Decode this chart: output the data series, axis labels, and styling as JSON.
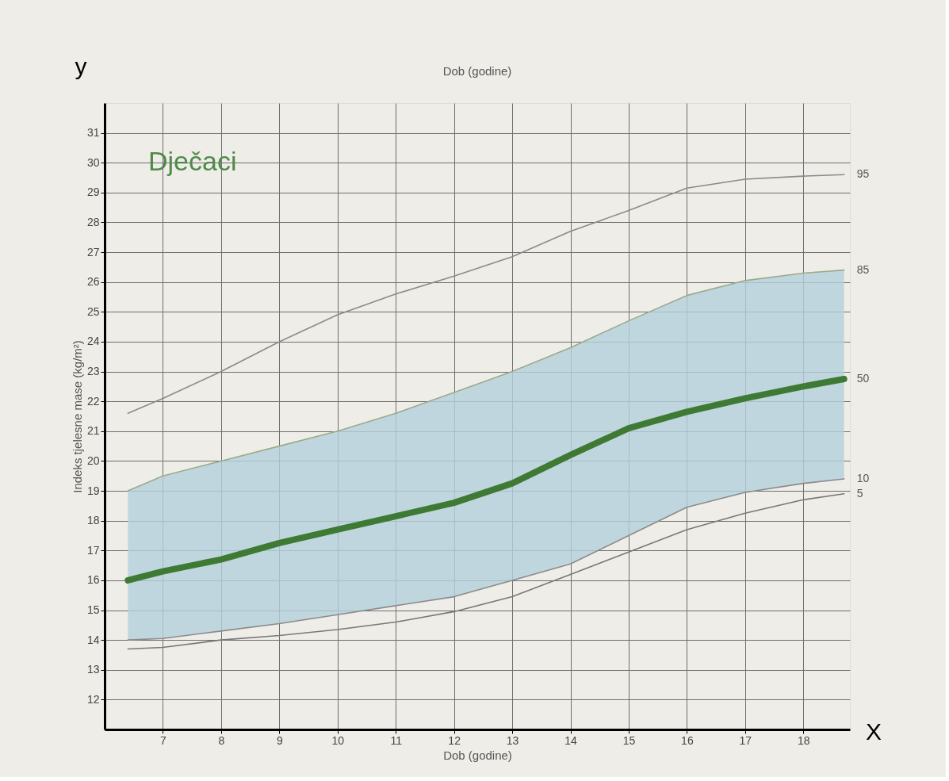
{
  "chart_data": {
    "type": "line",
    "title": "Dječaci",
    "xlabel": "Dob (godine)",
    "ylabel": "Indeks tjelesne mase (kg/m²)",
    "annotations": [
      "Dob (godine)",
      "y",
      "X"
    ],
    "x": [
      6.4,
      7,
      8,
      9,
      10,
      11,
      12,
      13,
      14,
      15,
      16,
      17,
      18,
      18.7
    ],
    "series": [
      {
        "name": "95",
        "color": "#8c8a8a",
        "values": [
          21.6,
          22.1,
          23.0,
          24.0,
          24.9,
          25.6,
          26.2,
          26.85,
          27.7,
          28.4,
          29.15,
          29.45,
          29.55,
          29.6
        ]
      },
      {
        "name": "85",
        "color": "#9aab8a",
        "values": [
          19.0,
          19.5,
          20.0,
          20.5,
          21.0,
          21.6,
          22.3,
          23.0,
          23.8,
          24.7,
          25.55,
          26.05,
          26.3,
          26.4
        ]
      },
      {
        "name": "50",
        "color": "#3f7a35",
        "values": [
          16.0,
          16.3,
          16.7,
          17.25,
          17.7,
          18.15,
          18.6,
          19.25,
          20.2,
          21.1,
          21.65,
          22.1,
          22.5,
          22.75
        ],
        "lower": [
          14.0,
          14.05,
          14.3,
          14.55,
          14.85,
          15.15,
          15.45,
          16.0,
          16.55,
          17.5,
          18.45,
          18.95,
          19.25,
          19.4
        ],
        "upper": [
          19.0,
          19.5,
          20.0,
          20.5,
          21.0,
          21.6,
          22.3,
          23.0,
          23.8,
          24.7,
          25.55,
          26.05,
          26.3,
          26.4
        ]
      },
      {
        "name": "10",
        "color": "#8c8a8a",
        "values": [
          14.0,
          14.05,
          14.3,
          14.55,
          14.85,
          15.15,
          15.45,
          16.0,
          16.55,
          17.5,
          18.45,
          18.95,
          19.25,
          19.4
        ]
      },
      {
        "name": "5",
        "color": "#7a7878",
        "values": [
          13.7,
          13.75,
          14.0,
          14.15,
          14.35,
          14.6,
          14.95,
          15.45,
          16.2,
          16.95,
          17.7,
          18.25,
          18.7,
          18.9
        ]
      }
    ],
    "xlim": [
      6,
      18.8
    ],
    "ylim": [
      11,
      32
    ],
    "xticks": [
      7,
      8,
      9,
      10,
      11,
      12,
      13,
      14,
      15,
      16,
      17,
      18
    ],
    "yticks": [
      12,
      13,
      14,
      15,
      16,
      17,
      18,
      19,
      20,
      21,
      22,
      23,
      24,
      25,
      26,
      27,
      28,
      29,
      30,
      31
    ],
    "grid": true,
    "legend": false,
    "marker": "none",
    "line_style": "solid"
  }
}
